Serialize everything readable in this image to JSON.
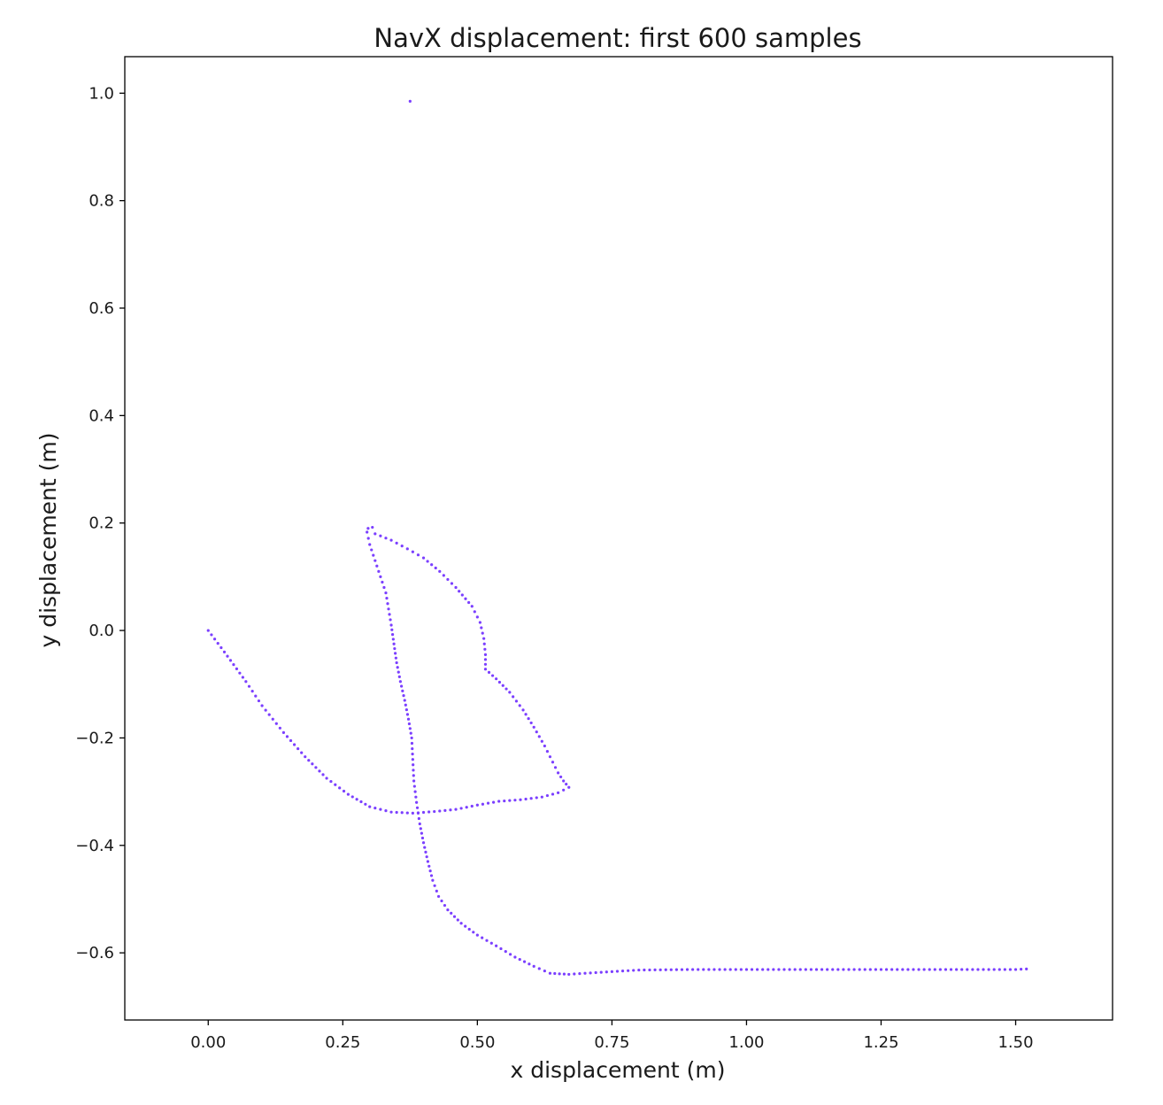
{
  "chart_data": {
    "type": "scatter",
    "title": "NavX displacement: first 600 samples",
    "xlabel": "x displacement (m)",
    "ylabel": "y displacement (m)",
    "xlim": [
      -0.155,
      1.68
    ],
    "ylim": [
      -0.725,
      1.068
    ],
    "xticks": [
      0.0,
      0.25,
      0.5,
      0.75,
      1.0,
      1.25,
      1.5
    ],
    "xtick_labels": [
      "0.00",
      "0.25",
      "0.50",
      "0.75",
      "1.00",
      "1.25",
      "1.50"
    ],
    "yticks": [
      1.0,
      0.8,
      0.6,
      0.4,
      0.2,
      0.0,
      -0.2,
      -0.4,
      -0.6
    ],
    "ytick_labels": [
      "1.0",
      "0.8",
      "0.6",
      "0.4",
      "0.2",
      "0.0",
      "−0.2",
      "−0.4",
      "−0.6"
    ],
    "grid": false,
    "color": "#7b3fff",
    "series": [
      {
        "name": "",
        "outlier": [
          0.375,
          0.985
        ],
        "path": [
          [
            0.0,
            0.0
          ],
          [
            0.03,
            -0.04
          ],
          [
            0.07,
            -0.095
          ],
          [
            0.1,
            -0.14
          ],
          [
            0.14,
            -0.19
          ],
          [
            0.18,
            -0.235
          ],
          [
            0.22,
            -0.275
          ],
          [
            0.26,
            -0.305
          ],
          [
            0.3,
            -0.328
          ],
          [
            0.34,
            -0.338
          ],
          [
            0.38,
            -0.34
          ],
          [
            0.42,
            -0.337
          ],
          [
            0.46,
            -0.333
          ],
          [
            0.5,
            -0.325
          ],
          [
            0.54,
            -0.318
          ],
          [
            0.58,
            -0.315
          ],
          [
            0.62,
            -0.31
          ],
          [
            0.65,
            -0.302
          ],
          [
            0.67,
            -0.292
          ],
          [
            0.66,
            -0.28
          ],
          [
            0.65,
            -0.265
          ],
          [
            0.64,
            -0.245
          ],
          [
            0.625,
            -0.215
          ],
          [
            0.605,
            -0.18
          ],
          [
            0.585,
            -0.148
          ],
          [
            0.56,
            -0.115
          ],
          [
            0.535,
            -0.09
          ],
          [
            0.515,
            -0.072
          ],
          [
            0.515,
            -0.045
          ],
          [
            0.512,
            -0.015
          ],
          [
            0.505,
            0.015
          ],
          [
            0.49,
            0.045
          ],
          [
            0.46,
            0.08
          ],
          [
            0.43,
            0.11
          ],
          [
            0.4,
            0.135
          ],
          [
            0.37,
            0.152
          ],
          [
            0.34,
            0.168
          ],
          [
            0.31,
            0.18
          ],
          [
            0.305,
            0.192
          ],
          [
            0.297,
            0.19
          ],
          [
            0.295,
            0.183
          ],
          [
            0.3,
            0.16
          ],
          [
            0.31,
            0.13
          ],
          [
            0.32,
            0.1
          ],
          [
            0.33,
            0.07
          ],
          [
            0.335,
            0.04
          ],
          [
            0.34,
            0.01
          ],
          [
            0.345,
            -0.025
          ],
          [
            0.35,
            -0.06
          ],
          [
            0.357,
            -0.095
          ],
          [
            0.365,
            -0.13
          ],
          [
            0.372,
            -0.165
          ],
          [
            0.378,
            -0.2
          ],
          [
            0.38,
            -0.24
          ],
          [
            0.382,
            -0.28
          ],
          [
            0.387,
            -0.32
          ],
          [
            0.393,
            -0.36
          ],
          [
            0.4,
            -0.395
          ],
          [
            0.408,
            -0.43
          ],
          [
            0.417,
            -0.465
          ],
          [
            0.428,
            -0.495
          ],
          [
            0.445,
            -0.52
          ],
          [
            0.47,
            -0.545
          ],
          [
            0.5,
            -0.567
          ],
          [
            0.535,
            -0.587
          ],
          [
            0.57,
            -0.608
          ],
          [
            0.605,
            -0.625
          ],
          [
            0.635,
            -0.638
          ],
          [
            0.67,
            -0.64
          ],
          [
            0.7,
            -0.638
          ],
          [
            0.75,
            -0.635
          ],
          [
            0.8,
            -0.632
          ],
          [
            0.9,
            -0.631
          ],
          [
            1.0,
            -0.631
          ],
          [
            1.1,
            -0.631
          ],
          [
            1.2,
            -0.631
          ],
          [
            1.3,
            -0.631
          ],
          [
            1.4,
            -0.631
          ],
          [
            1.5,
            -0.631
          ],
          [
            1.52,
            -0.63
          ]
        ]
      }
    ]
  }
}
